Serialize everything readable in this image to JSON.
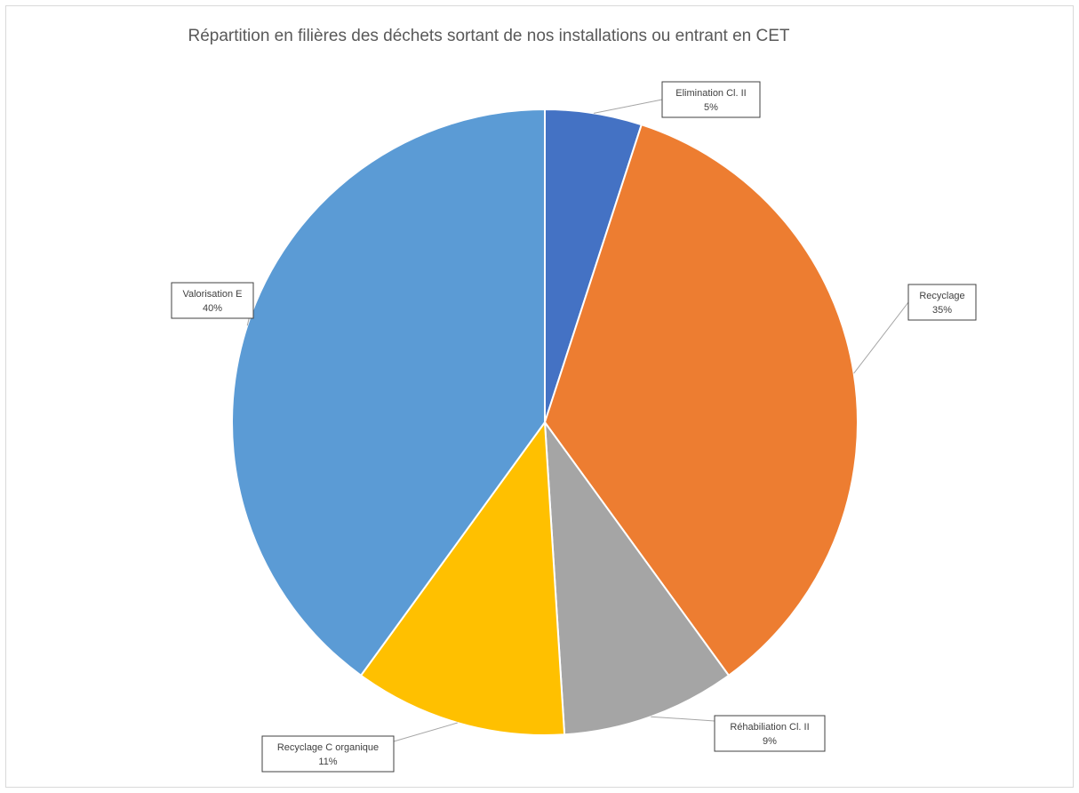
{
  "chart_data": {
    "type": "pie",
    "title": "Répartition en filières des déchets sortant  de nos installations ou entrant  en CET",
    "start_angle_deg": 0,
    "direction": "clockwise",
    "legend": "none",
    "slices": [
      {
        "label": "Elimination Cl. II",
        "value": 5,
        "value_label": "5%",
        "color": "#4472C4"
      },
      {
        "label": "Recyclage",
        "value": 35,
        "value_label": "35%",
        "color": "#ED7D31"
      },
      {
        "label": "Réhabiliation Cl. II",
        "value": 9,
        "value_label": "9%",
        "color": "#A5A5A5"
      },
      {
        "label": "Recyclage C organique",
        "value": 11,
        "value_label": "11%",
        "color": "#FFC000"
      },
      {
        "label": "Valorisation E",
        "value": 40,
        "value_label": "40%",
        "color": "#5B9BD5"
      }
    ]
  }
}
